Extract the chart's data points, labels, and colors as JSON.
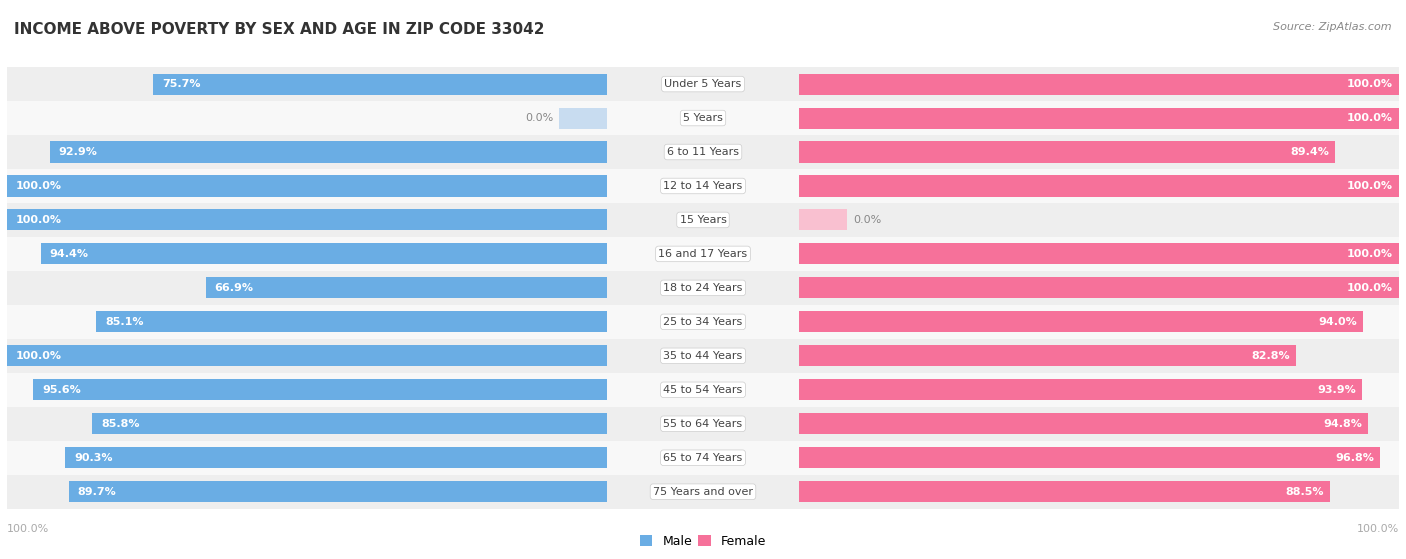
{
  "title": "INCOME ABOVE POVERTY BY SEX AND AGE IN ZIP CODE 33042",
  "source": "Source: ZipAtlas.com",
  "categories": [
    "Under 5 Years",
    "5 Years",
    "6 to 11 Years",
    "12 to 14 Years",
    "15 Years",
    "16 and 17 Years",
    "18 to 24 Years",
    "25 to 34 Years",
    "35 to 44 Years",
    "45 to 54 Years",
    "55 to 64 Years",
    "65 to 74 Years",
    "75 Years and over"
  ],
  "male_values": [
    75.7,
    0.0,
    92.9,
    100.0,
    100.0,
    94.4,
    66.9,
    85.1,
    100.0,
    95.6,
    85.8,
    90.3,
    89.7
  ],
  "female_values": [
    100.0,
    100.0,
    89.4,
    100.0,
    0.0,
    100.0,
    100.0,
    94.0,
    82.8,
    93.9,
    94.8,
    96.8,
    88.5
  ],
  "male_color": "#6aade4",
  "female_color": "#f6719a",
  "male_color_light": "#c8dcf0",
  "female_color_light": "#f9c0d0",
  "row_color_odd": "#eeeeee",
  "row_color_even": "#f8f8f8",
  "bar_height": 0.62,
  "legend_male": "Male",
  "legend_female": "Female",
  "title_fontsize": 11,
  "source_fontsize": 8,
  "label_fontsize": 8,
  "category_fontsize": 8,
  "tick_fontsize": 8,
  "bottom_label": "100.0%"
}
